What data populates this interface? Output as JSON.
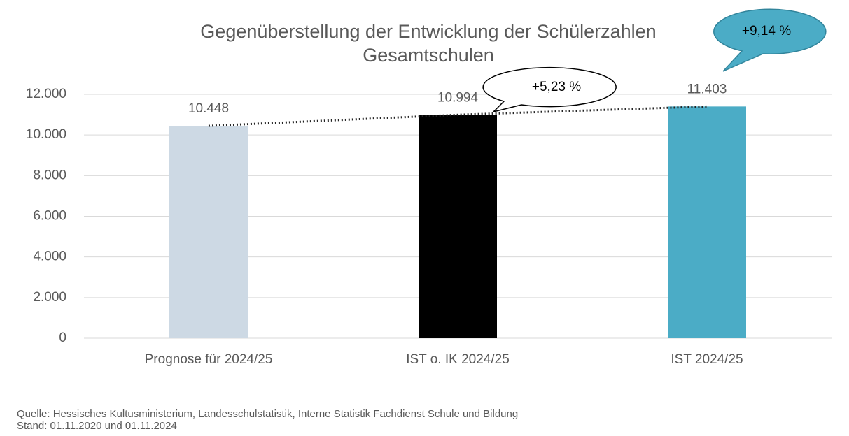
{
  "chart_data": {
    "type": "bar",
    "title": [
      "Gegenüberstellung der Entwicklung der Schülerzahlen",
      "Gesamtschulen"
    ],
    "categories": [
      "Prognose für 2024/25",
      "IST o. IK 2024/25",
      "IST 2024/25"
    ],
    "values": [
      10448,
      10994,
      11403
    ],
    "value_labels": [
      "10.448",
      "10.994",
      "11.403"
    ],
    "colors": [
      "#cdd9e4",
      "#000000",
      "#4bacc6"
    ],
    "ylim": [
      0,
      12000
    ],
    "yticks": [
      0,
      {
        "value": 2000,
        "label": "2.000"
      },
      {
        "value": 4000,
        "label": "4.000"
      },
      {
        "value": 6000,
        "label": "6.000"
      },
      {
        "value": 8000,
        "label": "8.000"
      },
      {
        "value": 10000,
        "label": "10.000"
      },
      {
        "value": 12000,
        "label": "12.000"
      }
    ],
    "grid": true,
    "trendline": "dotted",
    "annotations": [
      "+5,23 %",
      "+9,14 %"
    ],
    "source": [
      "Quelle: Hessisches Kultusministerium, Landesschulstatistik, Interne Statistik Fachdienst Schule und Bildung",
      "Stand: 01.11.2020 und 01.11.2024"
    ]
  }
}
